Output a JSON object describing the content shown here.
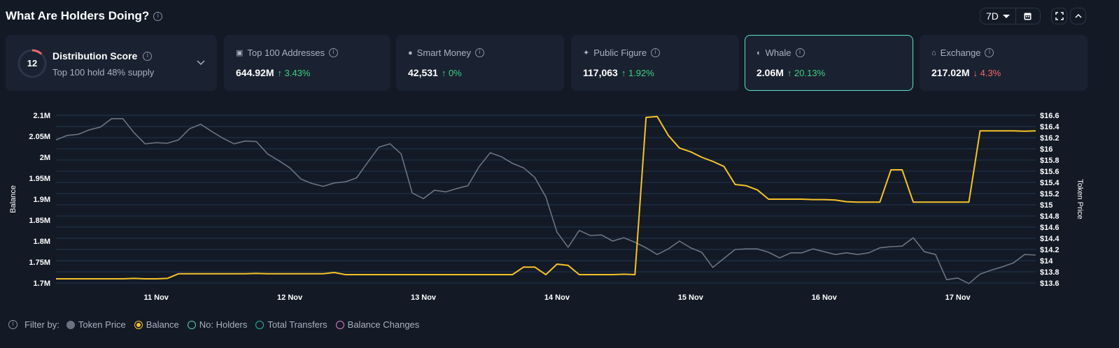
{
  "header": {
    "title": "What Are Holders Doing?",
    "range": "7D"
  },
  "distribution": {
    "label": "Distribution Score",
    "score": "12",
    "subtitle": "Top 100 hold 48% supply",
    "score_fraction": 0.12
  },
  "cards": [
    {
      "label": "Top 100 Addresses",
      "icon": "money-icon",
      "value": "644.92M",
      "change": "3.43%",
      "direction": "up"
    },
    {
      "label": "Smart Money",
      "icon": "sunglasses-icon",
      "value": "42,531",
      "change": "0%",
      "direction": "up"
    },
    {
      "label": "Public Figure",
      "icon": "public-figure-icon",
      "value": "117,063",
      "change": "1.92%",
      "direction": "up"
    },
    {
      "label": "Whale",
      "icon": "whale-icon",
      "value": "2.06M",
      "change": "20.13%",
      "direction": "up",
      "selected": true
    },
    {
      "label": "Exchange",
      "icon": "bank-icon",
      "value": "217.02M",
      "change": "4.3%",
      "direction": "down"
    }
  ],
  "colors": {
    "up": "#3fcf82",
    "down": "#f2686a",
    "accent": "#5fe0c2",
    "balance": "#f5c228",
    "price": "#6b7382",
    "grid": "#22354d"
  },
  "legend": {
    "prefix": "Filter by:",
    "items": [
      {
        "label": "Token Price",
        "color": "#6b7382",
        "state": "filled"
      },
      {
        "label": "Balance",
        "color": "#f5c228",
        "state": "selected"
      },
      {
        "label": "No: Holders",
        "color": "#4fd1b5",
        "state": "off"
      },
      {
        "label": "Total Transfers",
        "color": "#2bb39a",
        "state": "off"
      },
      {
        "label": "Balance Changes",
        "color": "#d77bc0",
        "state": "off"
      }
    ]
  },
  "chart_data": {
    "type": "line",
    "xlabel": "",
    "ylabel_left": "Balance",
    "ylabel_right": "Token Price",
    "x_ticks": [
      "11 Nov",
      "12 Nov",
      "13 Nov",
      "14 Nov",
      "15 Nov",
      "16 Nov",
      "17 Nov"
    ],
    "y_left_ticks": [
      "2.1M",
      "2.05M",
      "2M",
      "1.95M",
      "1.9M",
      "1.85M",
      "1.8M",
      "1.75M",
      "1.7M"
    ],
    "y_right_ticks": [
      "$16.6",
      "$16.4",
      "$16.2",
      "$16",
      "$15.8",
      "$15.6",
      "$15.4",
      "$15.2",
      "$15",
      "$14.8",
      "$14.6",
      "$14.4",
      "$14.2",
      "$14",
      "$13.8",
      "$13.6"
    ],
    "y_left_range_millions": [
      1.7,
      2.1
    ],
    "y_right_range": [
      13.6,
      16.6
    ],
    "grid": true,
    "x_start": "Nov 10 06:00",
    "interval_hours": 2,
    "series": [
      {
        "name": "Token Price",
        "axis": "right",
        "color": "#6b7382",
        "values": [
          16.16,
          16.24,
          16.26,
          16.34,
          16.39,
          16.54,
          16.54,
          16.29,
          16.09,
          16.11,
          16.1,
          16.16,
          16.36,
          16.44,
          16.31,
          16.19,
          16.09,
          16.14,
          16.13,
          15.91,
          15.79,
          15.66,
          15.46,
          15.38,
          15.33,
          15.39,
          15.41,
          15.48,
          15.76,
          16.03,
          16.09,
          15.91,
          15.21,
          15.11,
          15.26,
          15.23,
          15.29,
          15.34,
          15.68,
          15.93,
          15.86,
          15.74,
          15.66,
          15.49,
          15.14,
          14.51,
          14.24,
          14.54,
          14.45,
          14.46,
          14.35,
          14.41,
          14.33,
          14.23,
          14.11,
          14.21,
          14.35,
          14.23,
          14.15,
          13.88,
          14.04,
          14.2,
          14.21,
          14.21,
          14.15,
          14.05,
          14.14,
          14.14,
          14.21,
          14.16,
          14.11,
          14.14,
          14.11,
          14.14,
          14.23,
          14.25,
          14.26,
          14.41,
          14.16,
          14.11,
          13.66,
          13.69,
          13.59,
          13.76,
          13.83,
          13.89,
          13.96,
          14.11,
          14.1
        ]
      },
      {
        "name": "Balance",
        "axis": "left",
        "unit": "M",
        "color": "#f5c228",
        "values": [
          1.71,
          1.71,
          1.71,
          1.71,
          1.71,
          1.71,
          1.71,
          1.711,
          1.71,
          1.71,
          1.711,
          1.722,
          1.722,
          1.722,
          1.722,
          1.722,
          1.722,
          1.722,
          1.723,
          1.722,
          1.722,
          1.722,
          1.722,
          1.722,
          1.722,
          1.725,
          1.72,
          1.72,
          1.72,
          1.72,
          1.72,
          1.72,
          1.72,
          1.72,
          1.72,
          1.72,
          1.72,
          1.72,
          1.72,
          1.72,
          1.72,
          1.72,
          1.738,
          1.738,
          1.72,
          1.745,
          1.742,
          1.72,
          1.72,
          1.72,
          1.72,
          1.721,
          1.72,
          2.095,
          2.097,
          2.052,
          2.022,
          2.013,
          2.0,
          1.99,
          1.978,
          1.935,
          1.932,
          1.922,
          1.9,
          1.9,
          1.9,
          1.9,
          1.899,
          1.899,
          1.898,
          1.894,
          1.893,
          1.893,
          1.893,
          1.97,
          1.97,
          1.893,
          1.893,
          1.893,
          1.893,
          1.893,
          1.893,
          2.063,
          2.063,
          2.063,
          2.063,
          2.062,
          2.063
        ]
      }
    ]
  }
}
